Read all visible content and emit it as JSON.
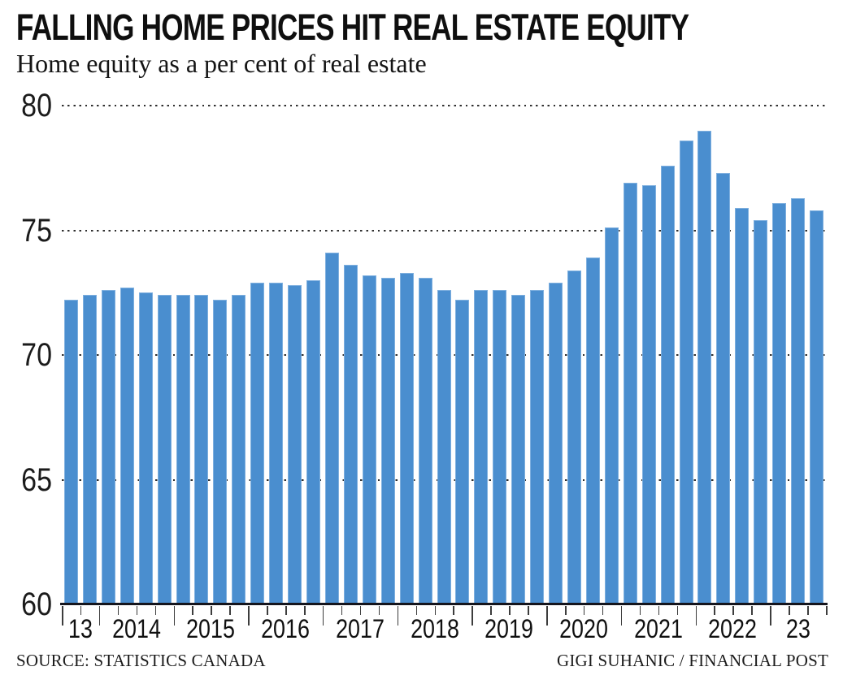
{
  "header": {
    "title": "FALLING HOME PRICES HIT REAL ESTATE EQUITY",
    "subtitle": "Home equity as a per cent of real estate"
  },
  "footer": {
    "source": "SOURCE: STATISTICS CANADA",
    "credit": "GIGI SUHANIC / FINANCIAL POST"
  },
  "chart_data": {
    "type": "bar",
    "title": "FALLING HOME PRICES HIT REAL ESTATE EQUITY",
    "subtitle": "Home equity as a per cent of real estate",
    "ylabel": "Home equity as a per cent of real estate",
    "xlabel": "",
    "ylim": [
      60,
      80
    ],
    "yticks": [
      60,
      65,
      70,
      75,
      80
    ],
    "grid": "dotted horizontal, behind bars",
    "legend": "none",
    "bar_color": "#4a8ecf",
    "bar_edge_color": "#7fb0df",
    "axis_color": "#15151d",
    "x": [
      "2013 Q3",
      "2013 Q4",
      "2014 Q1",
      "2014 Q2",
      "2014 Q3",
      "2014 Q4",
      "2015 Q1",
      "2015 Q2",
      "2015 Q3",
      "2015 Q4",
      "2016 Q1",
      "2016 Q2",
      "2016 Q3",
      "2016 Q4",
      "2017 Q1",
      "2017 Q2",
      "2017 Q3",
      "2017 Q4",
      "2018 Q1",
      "2018 Q2",
      "2018 Q3",
      "2018 Q4",
      "2019 Q1",
      "2019 Q2",
      "2019 Q3",
      "2019 Q4",
      "2020 Q1",
      "2020 Q2",
      "2020 Q3",
      "2020 Q4",
      "2021 Q1",
      "2021 Q2",
      "2021 Q3",
      "2021 Q4",
      "2022 Q1",
      "2022 Q2",
      "2022 Q3",
      "2022 Q4",
      "2023 Q1",
      "2023 Q2",
      "2023 Q3"
    ],
    "values": [
      72.2,
      72.4,
      72.6,
      72.7,
      72.5,
      72.4,
      72.4,
      72.4,
      72.2,
      72.4,
      72.9,
      72.9,
      72.8,
      73.0,
      74.1,
      73.6,
      73.2,
      73.1,
      73.3,
      73.1,
      72.6,
      72.2,
      72.6,
      72.6,
      72.4,
      72.6,
      72.9,
      73.4,
      73.9,
      75.1,
      76.9,
      76.8,
      77.6,
      78.6,
      79.0,
      77.3,
      75.9,
      75.4,
      76.1,
      76.3,
      75.8
    ],
    "x_axis_year_labels": [
      "13",
      "2014",
      "2015",
      "2016",
      "2017",
      "2018",
      "2019",
      "2020",
      "2021",
      "2022",
      "23"
    ],
    "year_boundary_bar_indices": [
      0,
      2,
      6,
      10,
      14,
      18,
      22,
      26,
      30,
      34,
      38,
      41
    ]
  }
}
